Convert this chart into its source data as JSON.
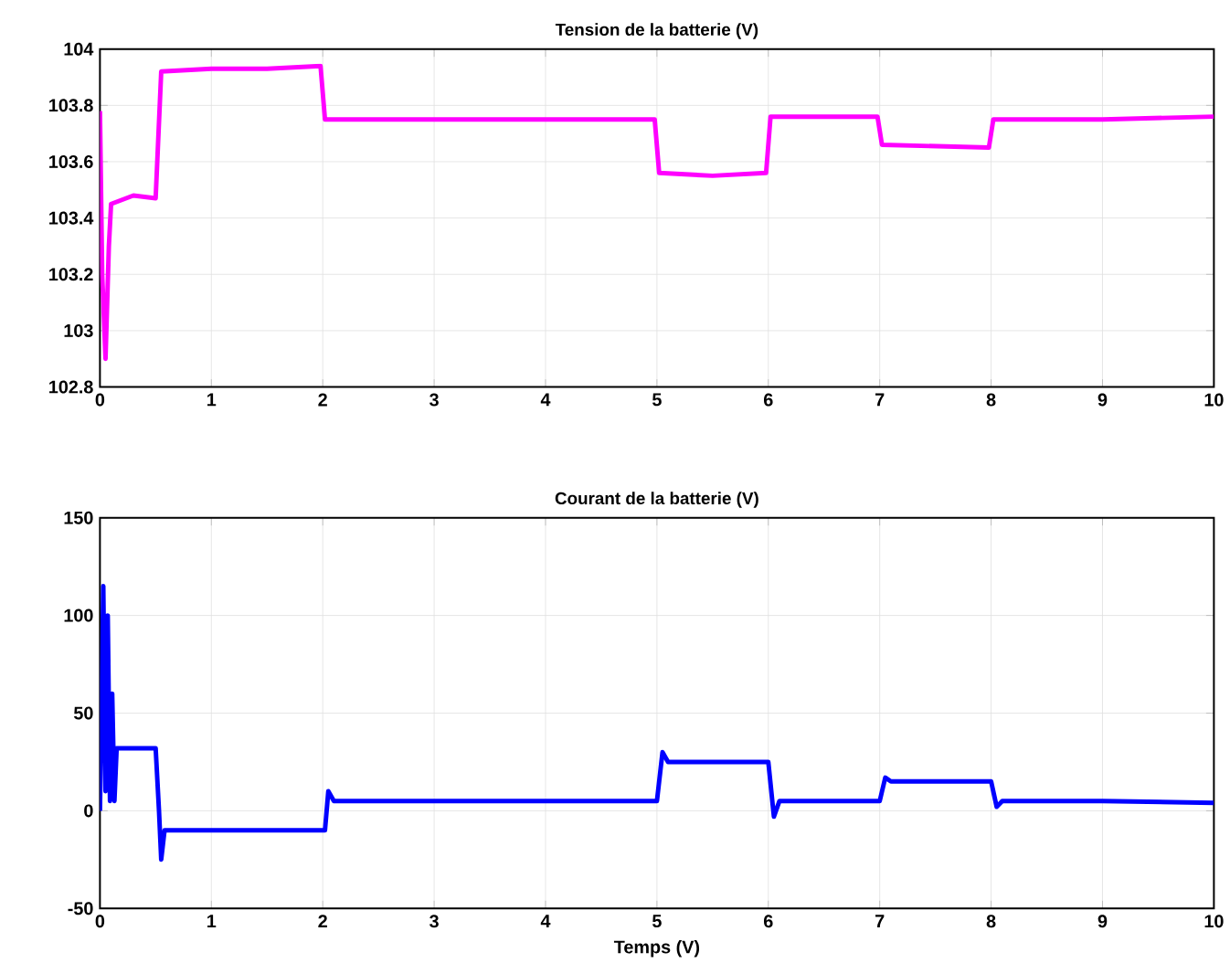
{
  "chart_data": [
    {
      "type": "line",
      "title": "Tension de la batterie (V)",
      "grid": true,
      "xlim": [
        0,
        10
      ],
      "ylim": [
        102.8,
        104
      ],
      "xticks": [
        0,
        1,
        2,
        3,
        4,
        5,
        6,
        7,
        8,
        9,
        10
      ],
      "yticks": [
        102.8,
        103,
        103.2,
        103.4,
        103.6,
        103.8,
        104
      ],
      "series": [
        {
          "color": "#ff00ff",
          "x": [
            0,
            0.02,
            0.05,
            0.08,
            0.1,
            0.3,
            0.5,
            0.55,
            1,
            1.5,
            1.98,
            2.02,
            3,
            4,
            4.98,
            5.02,
            5.5,
            5.98,
            6.02,
            6.98,
            7.02,
            7.98,
            8.02,
            9,
            10
          ],
          "values": [
            103.78,
            103.2,
            102.9,
            103.3,
            103.45,
            103.48,
            103.47,
            103.92,
            103.93,
            103.93,
            103.94,
            103.75,
            103.75,
            103.75,
            103.75,
            103.56,
            103.55,
            103.56,
            103.76,
            103.76,
            103.66,
            103.65,
            103.75,
            103.75,
            103.76
          ]
        }
      ]
    },
    {
      "type": "line",
      "title": "Courant de la batterie (V)",
      "xlabel": "Temps (V)",
      "grid": true,
      "xlim": [
        0,
        10
      ],
      "ylim": [
        -50,
        150
      ],
      "xticks": [
        0,
        1,
        2,
        3,
        4,
        5,
        6,
        7,
        8,
        9,
        10
      ],
      "yticks": [
        -50,
        0,
        50,
        100,
        150
      ],
      "series": [
        {
          "color": "#0000ff",
          "x": [
            0,
            0.03,
            0.05,
            0.07,
            0.09,
            0.11,
            0.13,
            0.15,
            0.5,
            0.53,
            0.55,
            0.58,
            1,
            2.02,
            2.05,
            2.1,
            3,
            4,
            5.0,
            5.05,
            5.1,
            6.0,
            6.05,
            6.1,
            7.0,
            7.05,
            7.1,
            8.0,
            8.05,
            8.1,
            9,
            10
          ],
          "values": [
            0,
            115,
            10,
            100,
            5,
            60,
            5,
            32,
            32,
            0,
            -25,
            -10,
            -10,
            -10,
            10,
            5,
            5,
            5,
            5,
            30,
            25,
            25,
            -3,
            5,
            5,
            17,
            15,
            15,
            2,
            5,
            5,
            4
          ]
        }
      ]
    }
  ]
}
